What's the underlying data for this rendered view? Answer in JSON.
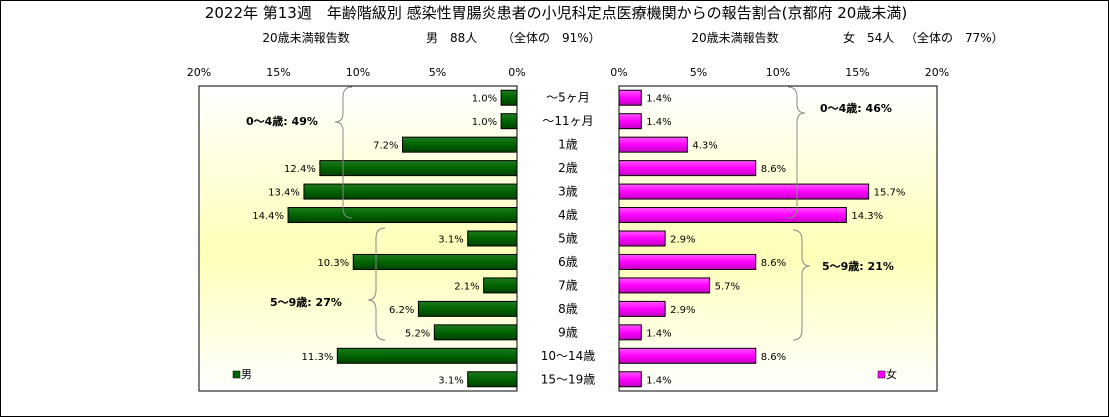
{
  "chart_data": {
    "type": "bar",
    "title": "2022年 第13週　年齢階級別 感染性胃腸炎患者の小児科定点医療機関からの報告割合(京都府 20歳未満)",
    "male_header": {
      "label": "20歳未満報告数",
      "count": "男　88人",
      "share": "（全体の　91%）"
    },
    "female_header": {
      "label": "20歳未満報告数",
      "count": "女　54人",
      "share": "（全体の　77%）"
    },
    "categories": [
      "～5ヶ月",
      "～11ヶ月",
      "1歳",
      "2歳",
      "3歳",
      "4歳",
      "5歳",
      "6歳",
      "7歳",
      "8歳",
      "9歳",
      "10～14歳",
      "15～19歳"
    ],
    "series": [
      {
        "name": "男",
        "color": "#006400",
        "values": [
          1.0,
          1.0,
          7.2,
          12.4,
          13.4,
          14.4,
          3.1,
          10.3,
          2.1,
          6.2,
          5.2,
          11.3,
          3.1
        ]
      },
      {
        "name": "女",
        "color": "#ff00ff",
        "values": [
          1.4,
          1.4,
          4.3,
          8.6,
          15.7,
          14.3,
          2.9,
          8.6,
          5.7,
          2.9,
          1.4,
          8.6,
          1.4
        ]
      }
    ],
    "xlim": [
      0,
      20
    ],
    "x_ticks": [
      "0%",
      "5%",
      "10%",
      "15%",
      "20%"
    ],
    "group_annotations": {
      "male_0_4": "0～4歳: 49%",
      "male_5_9": "5～9歳: 27%",
      "female_0_4": "0～4歳: 46%",
      "female_5_9": "5～9歳: 21%"
    },
    "legend": {
      "male": "男",
      "female": "女"
    }
  }
}
